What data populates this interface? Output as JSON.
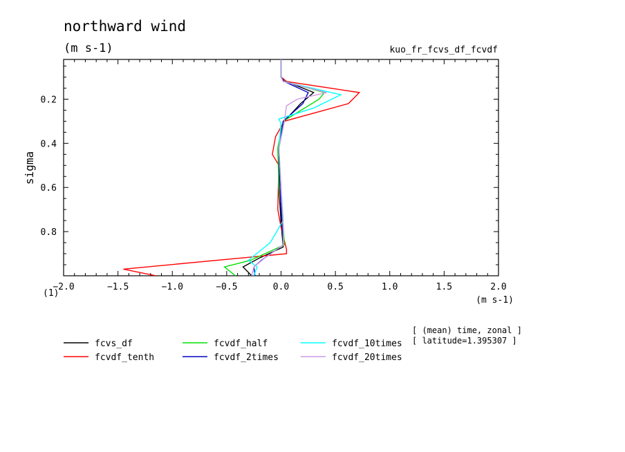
{
  "chart_data": {
    "type": "line",
    "title": "northward wind",
    "title_units": "(m s-1)",
    "experiment": "kuo_fr_fcvs_df_fcvdf",
    "xlabel_units": "(m s-1)",
    "x_scale_label": "(1)",
    "ylabel": "sigma",
    "xlim": [
      -2.0,
      2.0
    ],
    "ylim": [
      1.0,
      0.02
    ],
    "y_inverted": true,
    "x_ticks": [
      "-2.0",
      "-1.5",
      "-1.0",
      "-0.5",
      "0.0",
      "0.5",
      "1.0",
      "1.5",
      "2.0"
    ],
    "y_ticks": [
      "0.2",
      "0.4",
      "0.6",
      "0.8"
    ],
    "grid": false,
    "legend_position": "bottom",
    "annotation_lines": [
      "[ (mean) time, zonal ]",
      "[ latitude=1.395307 ]"
    ],
    "series": [
      {
        "name": "fcvs_df",
        "color": "#000000",
        "points": [
          [
            0.0,
            0.02
          ],
          [
            0.0,
            0.1
          ],
          [
            0.05,
            0.12
          ],
          [
            0.3,
            0.17
          ],
          [
            0.18,
            0.22
          ],
          [
            0.03,
            0.3
          ],
          [
            -0.02,
            0.42
          ],
          [
            -0.02,
            0.6
          ],
          [
            0.0,
            0.76
          ],
          [
            0.02,
            0.87
          ],
          [
            -0.2,
            0.92
          ],
          [
            -0.35,
            0.96
          ],
          [
            -0.27,
            1.0
          ]
        ]
      },
      {
        "name": "fcvdf_tenth",
        "color": "#ff0000",
        "points": [
          [
            0.0,
            0.02
          ],
          [
            0.0,
            0.1
          ],
          [
            0.05,
            0.12
          ],
          [
            0.72,
            0.17
          ],
          [
            0.62,
            0.22
          ],
          [
            0.03,
            0.3
          ],
          [
            -0.05,
            0.37
          ],
          [
            -0.08,
            0.45
          ],
          [
            -0.02,
            0.5
          ],
          [
            -0.03,
            0.7
          ],
          [
            0.0,
            0.78
          ],
          [
            0.05,
            0.88
          ],
          [
            0.05,
            0.9
          ],
          [
            -1.45,
            0.97
          ],
          [
            -1.15,
            1.0
          ]
        ]
      },
      {
        "name": "fcvdf_half",
        "color": "#00e000",
        "points": [
          [
            0.0,
            0.02
          ],
          [
            0.0,
            0.1
          ],
          [
            0.03,
            0.12
          ],
          [
            0.4,
            0.17
          ],
          [
            0.35,
            0.2
          ],
          [
            0.02,
            0.3
          ],
          [
            -0.03,
            0.42
          ],
          [
            -0.02,
            0.6
          ],
          [
            0.02,
            0.77
          ],
          [
            0.03,
            0.86
          ],
          [
            -0.28,
            0.93
          ],
          [
            -0.52,
            0.96
          ],
          [
            -0.42,
            1.0
          ]
        ]
      },
      {
        "name": "fcvdf_2times",
        "color": "#0000c0",
        "points": [
          [
            0.0,
            0.02
          ],
          [
            0.0,
            0.1
          ],
          [
            0.03,
            0.12
          ],
          [
            0.25,
            0.17
          ],
          [
            0.2,
            0.22
          ],
          [
            0.02,
            0.3
          ],
          [
            -0.02,
            0.42
          ],
          [
            -0.01,
            0.6
          ],
          [
            0.01,
            0.78
          ],
          [
            0.02,
            0.86
          ],
          [
            -0.18,
            0.93
          ],
          [
            -0.25,
            0.96
          ],
          [
            -0.24,
            1.0
          ]
        ]
      },
      {
        "name": "fcvdf_10times",
        "color": "#00ffff",
        "points": [
          [
            0.0,
            0.02
          ],
          [
            0.0,
            0.1
          ],
          [
            0.02,
            0.12
          ],
          [
            0.55,
            0.18
          ],
          [
            0.3,
            0.24
          ],
          [
            -0.02,
            0.29
          ],
          [
            0.0,
            0.31
          ],
          [
            -0.02,
            0.42
          ],
          [
            0.0,
            0.6
          ],
          [
            0.02,
            0.75
          ],
          [
            -0.1,
            0.85
          ],
          [
            -0.3,
            0.93
          ],
          [
            -0.22,
            0.96
          ],
          [
            -0.25,
            1.0
          ]
        ]
      },
      {
        "name": "fcvdf_20times",
        "color": "#cc99e6",
        "points": [
          [
            0.0,
            0.02
          ],
          [
            0.0,
            0.1
          ],
          [
            0.02,
            0.12
          ],
          [
            0.42,
            0.17
          ],
          [
            0.15,
            0.2
          ],
          [
            0.05,
            0.23
          ],
          [
            0.03,
            0.3
          ],
          [
            -0.02,
            0.42
          ],
          [
            0.0,
            0.6
          ],
          [
            0.02,
            0.77
          ],
          [
            0.02,
            0.86
          ],
          [
            -0.15,
            0.92
          ],
          [
            -0.25,
            0.96
          ],
          [
            -0.27,
            1.0
          ]
        ]
      }
    ]
  }
}
